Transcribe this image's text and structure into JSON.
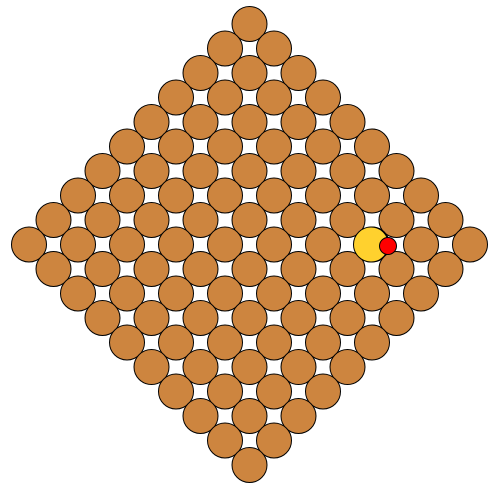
{
  "board": {
    "shape": "diamond",
    "rows": 19,
    "cells_per_row": [
      1,
      2,
      3,
      4,
      5,
      6,
      7,
      8,
      9,
      10,
      9,
      8,
      7,
      6,
      5,
      4,
      3,
      2,
      1
    ],
    "colors": {
      "cell_fill": "#cd853f",
      "highlight_fill": "#ffd12e",
      "marker_fill": "#ff0000",
      "outline": "#000000",
      "background": "#ffffff"
    },
    "highlighted_cell": {
      "row": 9,
      "col": 7
    },
    "marker_cell": {
      "row": 9,
      "col": 7
    }
  }
}
